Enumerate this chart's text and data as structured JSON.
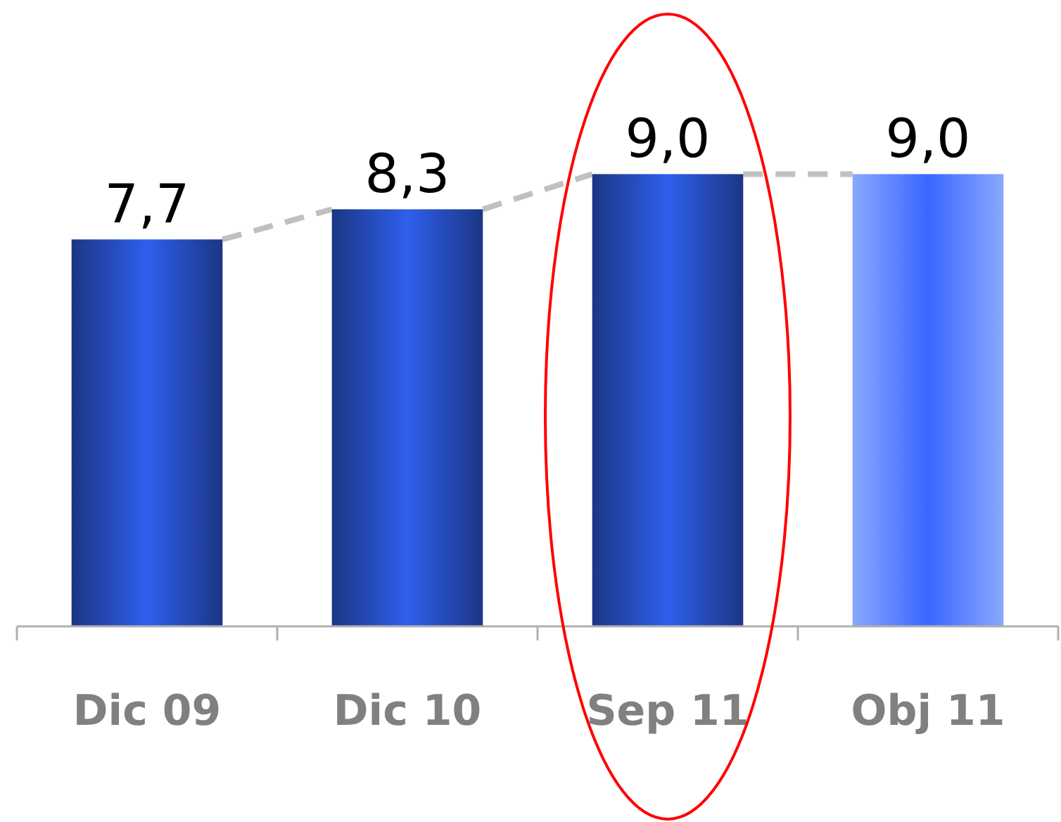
{
  "chart_data": {
    "type": "bar",
    "categories": [
      "Dic 09",
      "Dic 10",
      "Sep 11",
      "Obj 11"
    ],
    "values": [
      7.7,
      8.3,
      9.0,
      9.0
    ],
    "value_labels": [
      "7,7",
      "8,3",
      "9,0",
      "9,0"
    ],
    "colors": [
      "#2f5fec",
      "#2f5fec",
      "#2f5fec",
      "#8aa8ff"
    ]
  }
}
